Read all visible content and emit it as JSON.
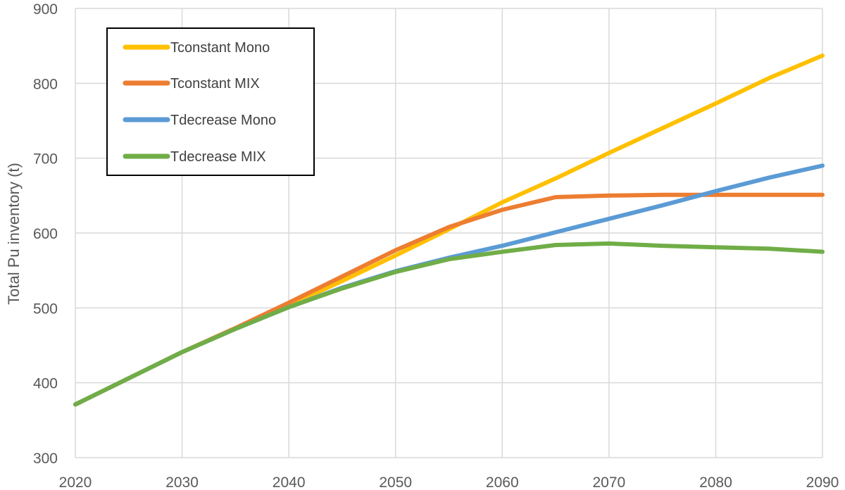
{
  "chart_data": {
    "type": "line",
    "title": "",
    "xlabel": "",
    "ylabel": "Total Pu inventory (t)",
    "xlim": [
      2020,
      2090
    ],
    "ylim": [
      300,
      900
    ],
    "xticks": [
      2020,
      2030,
      2040,
      2050,
      2060,
      2070,
      2080,
      2090
    ],
    "yticks": [
      300,
      400,
      500,
      600,
      700,
      800,
      900
    ],
    "grid": true,
    "legend_position": "top-left",
    "series": [
      {
        "name": "Tconstant Mono",
        "color": "#FFC000",
        "x": [
          2020,
          2025,
          2030,
          2035,
          2040,
          2045,
          2050,
          2055,
          2060,
          2065,
          2070,
          2075,
          2080,
          2085,
          2090
        ],
        "y": [
          371,
          406,
          441,
          473,
          503,
          536,
          570,
          605,
          641,
          673,
          707,
          740,
          773,
          807,
          837
        ]
      },
      {
        "name": "Tconstant MIX",
        "color": "#ED7D31",
        "x": [
          2020,
          2025,
          2030,
          2035,
          2040,
          2045,
          2050,
          2055,
          2060,
          2065,
          2070,
          2075,
          2080,
          2085,
          2090
        ],
        "y": [
          371,
          406,
          441,
          473,
          507,
          542,
          577,
          608,
          631,
          648,
          650,
          651,
          651,
          651,
          651
        ]
      },
      {
        "name": "Tdecrease Mono",
        "color": "#5B9BD5",
        "x": [
          2020,
          2025,
          2030,
          2035,
          2040,
          2045,
          2050,
          2055,
          2060,
          2065,
          2070,
          2075,
          2080,
          2085,
          2090
        ],
        "y": [
          371,
          406,
          441,
          472,
          501,
          527,
          549,
          567,
          583,
          601,
          619,
          637,
          656,
          674,
          690
        ]
      },
      {
        "name": "Tdecrease MIX",
        "color": "#70AD47",
        "x": [
          2020,
          2025,
          2030,
          2035,
          2040,
          2045,
          2050,
          2055,
          2060,
          2065,
          2070,
          2075,
          2080,
          2085,
          2090
        ],
        "y": [
          371,
          406,
          441,
          472,
          501,
          526,
          548,
          565,
          575,
          584,
          586,
          583,
          581,
          579,
          575
        ]
      }
    ]
  }
}
